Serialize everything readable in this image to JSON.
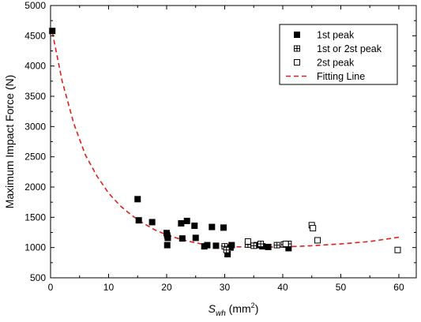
{
  "chart_data": {
    "type": "scatter",
    "ylabel": "Maximum Impact Force (N)",
    "xlabel_main": "S",
    "xlabel_sub": "wh",
    "xlabel_unit_pre": " (mm",
    "xlabel_unit_sup": "2",
    "xlabel_unit_post": ")",
    "xlim": [
      0,
      63
    ],
    "ylim": [
      500,
      5000
    ],
    "xticks": [
      0,
      10,
      20,
      30,
      40,
      50,
      60
    ],
    "yticks": [
      500,
      1000,
      1500,
      2000,
      2500,
      3000,
      3500,
      4000,
      4500,
      5000
    ],
    "legend_position": "top-right",
    "series": [
      {
        "name": "1st peak",
        "marker": "filled-square",
        "color": "#000000",
        "points": [
          [
            0.3,
            4580
          ],
          [
            15,
            1800
          ],
          [
            15.2,
            1450
          ],
          [
            17.5,
            1420
          ],
          [
            20,
            1240
          ],
          [
            20.1,
            1200
          ],
          [
            20.2,
            1160
          ],
          [
            20.1,
            1040
          ],
          [
            22.5,
            1400
          ],
          [
            22.7,
            1150
          ],
          [
            23.5,
            1440
          ],
          [
            24.8,
            1360
          ],
          [
            25,
            1160
          ],
          [
            26.5,
            1020
          ],
          [
            27,
            1040
          ],
          [
            27.8,
            1340
          ],
          [
            28.5,
            1030
          ],
          [
            29.8,
            1330
          ],
          [
            30.5,
            890
          ],
          [
            31,
            1000
          ],
          [
            31.2,
            1040
          ],
          [
            35.5,
            1040
          ],
          [
            36.5,
            1020
          ],
          [
            37.5,
            1010
          ],
          [
            41,
            990
          ]
        ]
      },
      {
        "name": "1st or 2st peak",
        "marker": "crossed-square",
        "color": "#000000",
        "points": [
          [
            30,
            1020
          ],
          [
            30.3,
            960
          ],
          [
            34,
            1050
          ],
          [
            35,
            1030
          ],
          [
            36.2,
            1060
          ],
          [
            39,
            1040
          ],
          [
            40.2,
            1050
          ],
          [
            41,
            1060
          ]
        ]
      },
      {
        "name": "2st peak",
        "marker": "open-square",
        "color": "#000000",
        "points": [
          [
            34,
            1100
          ],
          [
            40.5,
            1060
          ],
          [
            45,
            1370
          ],
          [
            45.2,
            1320
          ],
          [
            46,
            1120
          ],
          [
            59.8,
            960
          ]
        ]
      },
      {
        "name": "Fitting Line",
        "marker": "dashed-line",
        "color": "#e0201b",
        "points": [
          [
            0.3,
            4560
          ],
          [
            2,
            3750
          ],
          [
            4,
            3050
          ],
          [
            6,
            2530
          ],
          [
            8,
            2180
          ],
          [
            10,
            1900
          ],
          [
            12,
            1690
          ],
          [
            14,
            1530
          ],
          [
            16,
            1400
          ],
          [
            18,
            1290
          ],
          [
            20,
            1210
          ],
          [
            22,
            1150
          ],
          [
            24,
            1100
          ],
          [
            26,
            1060
          ],
          [
            28,
            1040
          ],
          [
            30,
            1020
          ],
          [
            33,
            1010
          ],
          [
            36,
            1005
          ],
          [
            40,
            1010
          ],
          [
            45,
            1030
          ],
          [
            50,
            1060
          ],
          [
            55,
            1100
          ],
          [
            60,
            1170
          ]
        ]
      }
    ]
  }
}
